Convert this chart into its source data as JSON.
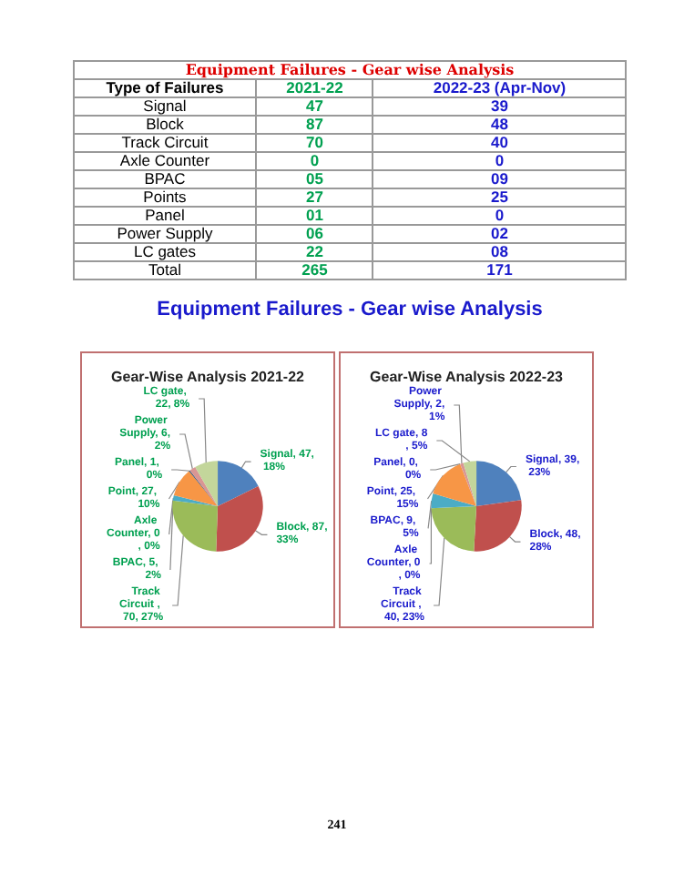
{
  "chart_data": [
    {
      "type": "other",
      "title": "Equipment Failures - Gear wise Analysis",
      "subtitle": "Equipment Failures - Gear wise Analysis",
      "xlabel": "Type  of Failures",
      "categories": [
        "Signal",
        "Block",
        "Track Circuit",
        "Axle Counter",
        "BPAC",
        "Points",
        "Panel",
        "Power Supply",
        "LC gates",
        "Total"
      ],
      "series": [
        {
          "name": "2021-22",
          "color": "#00a050",
          "values": [
            47,
            87,
            70,
            0,
            5,
            27,
            1,
            6,
            22,
            265
          ],
          "value_labels": [
            "47",
            "87",
            "70",
            "0",
            "05",
            "27",
            "01",
            "06",
            "22",
            "265"
          ]
        },
        {
          "name": "2022-23 (Apr-Nov)",
          "color": "#1a1acc",
          "values": [
            39,
            48,
            40,
            0,
            9,
            25,
            0,
            2,
            8,
            171
          ],
          "value_labels": [
            "39",
            "48",
            "40",
            "0",
            "09",
            "25",
            "0",
            "02",
            "08",
            "171"
          ]
        }
      ],
      "annotations": [
        "241"
      ]
    },
    {
      "type": "pie",
      "title": "Gear-Wise Analysis 2021-22",
      "categories": [
        "Signal",
        "Block",
        "Track Circuit ",
        "Axle Counter",
        "BPAC",
        "Point",
        "Panel",
        "Power Supply",
        "LC gate"
      ],
      "values": [
        47,
        87,
        70,
        0,
        5,
        27,
        1,
        6,
        22
      ],
      "colors": [
        "#4f81bd",
        "#c0504d",
        "#9bbb59",
        "#8064a2",
        "#4bacc6",
        "#f79646",
        "#2c4d75",
        "#d99694",
        "#c3d69b"
      ],
      "value_labels": [
        ", 47, 18%",
        ", 87, 33%",
        ", 70, 27%",
        ", 0, 0%",
        ", 5, 2%",
        ", 27, 10%",
        ", 1, 0%",
        ", 6, 2%",
        ", 22, 8%"
      ]
    },
    {
      "type": "pie",
      "title": "Gear-Wise Analysis 2022-23",
      "categories": [
        "Signal",
        "Block",
        "Track Circuit ",
        "Axle Counter",
        "BPAC",
        "Point",
        "Panel",
        "Power Supply",
        "LC gate"
      ],
      "values": [
        39,
        48,
        40,
        0,
        9,
        25,
        0,
        2,
        8
      ],
      "colors": [
        "#4f81bd",
        "#c0504d",
        "#9bbb59",
        "#8064a2",
        "#4bacc6",
        "#f79646",
        "#2c4d75",
        "#d99694",
        "#c3d69b"
      ],
      "value_labels": [
        ", 39, 23%",
        ", 48, 28%",
        ", 40, 23%",
        ", 0, 0%",
        ", 9, 5%",
        ", 25, 15%",
        ", 0, 0%",
        ", 2, 1%",
        ", 8, 5%"
      ]
    }
  ]
}
